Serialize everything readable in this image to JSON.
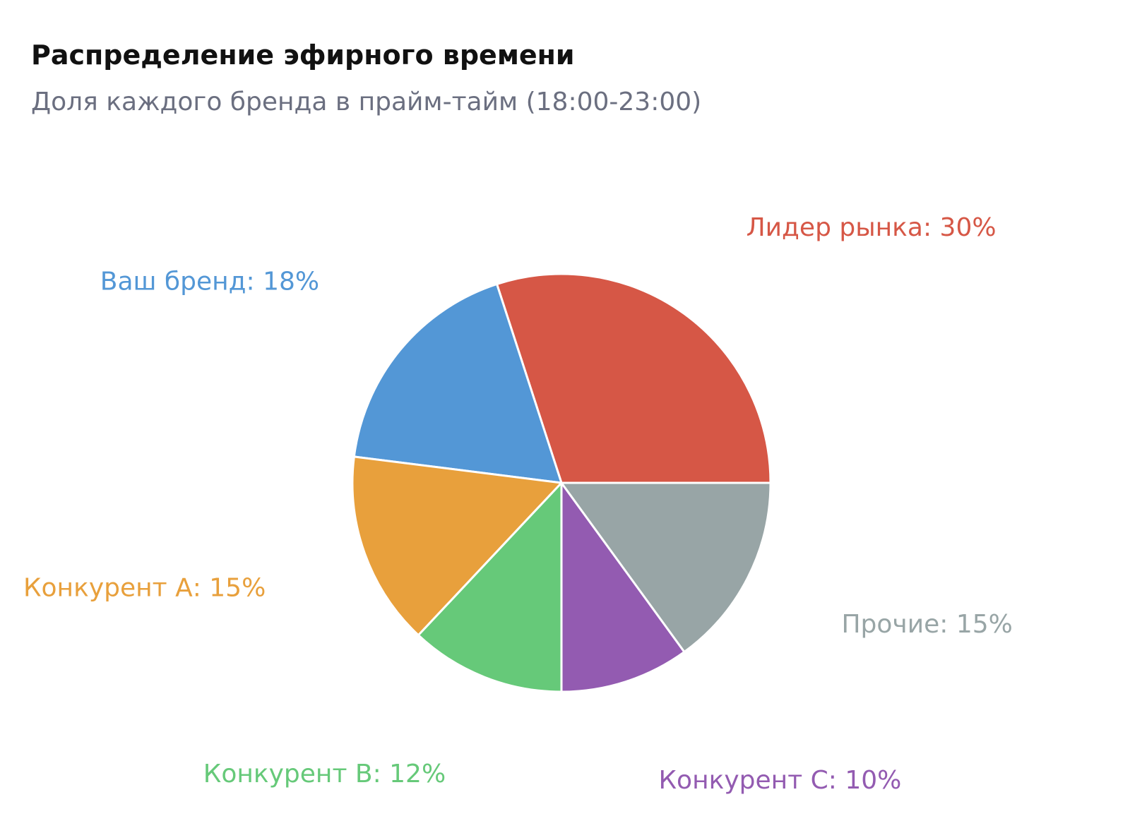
{
  "chart_data": {
    "type": "pie",
    "title": "Распределение эфирного времени",
    "subtitle": "Доля каждого бренда в прайм-тайм (18:00-23:00)",
    "unit": "%",
    "slices": [
      {
        "label": "Лидер рынка",
        "value": 30,
        "color": "#d65746"
      },
      {
        "label": "Ваш бренд",
        "value": 18,
        "color": "#5397d6"
      },
      {
        "label": "Конкурент А",
        "value": 15,
        "color": "#e8a03c"
      },
      {
        "label": "Конкурент B",
        "value": 12,
        "color": "#66c979"
      },
      {
        "label": "Конкурент C",
        "value": 10,
        "color": "#935bb1"
      },
      {
        "label": "Прочие",
        "value": 15,
        "color": "#98a5a6"
      }
    ]
  }
}
